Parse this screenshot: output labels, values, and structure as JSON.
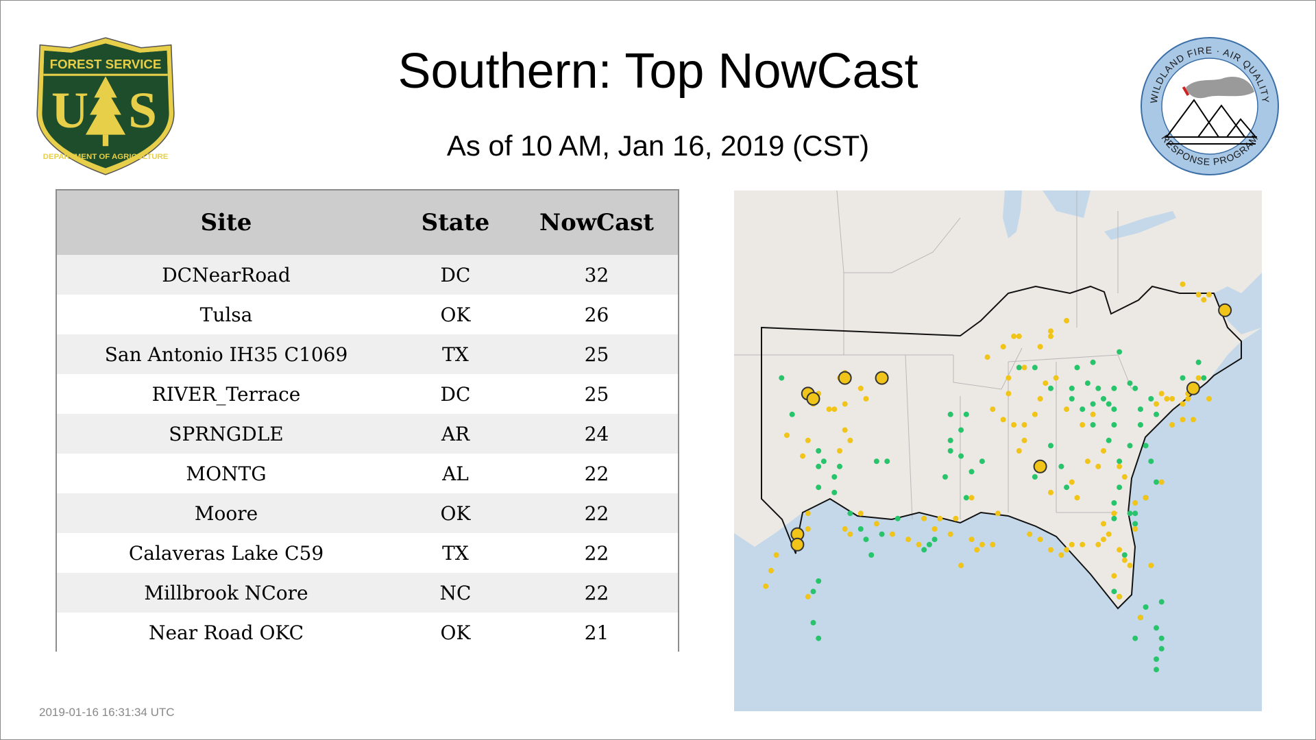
{
  "header": {
    "title": "Southern: Top NowCast",
    "subtitle": "As of 10 AM, Jan 16, 2019 (CST)"
  },
  "logos": {
    "forest_service": {
      "icon": "forest-service-shield-icon",
      "top_text": "FOREST SERVICE",
      "letters": "U S",
      "bottom_text": "DEPARTMENT OF AGRICULTURE",
      "colors": {
        "shield": "#1e4d2b",
        "gold": "#e8cf4a"
      }
    },
    "wildland_fire": {
      "icon": "wildland-fire-air-quality-seal-icon",
      "top_text": "WILDLAND FIRE · AIR QUALITY",
      "bottom_text": "RESPONSE PROGRAM",
      "colors": {
        "ring": "#a9c8e6",
        "border": "#3a6ea5"
      }
    }
  },
  "table": {
    "columns": [
      "Site",
      "State",
      "NowCast"
    ],
    "rows": [
      {
        "site": "DCNearRoad",
        "state": "DC",
        "nowcast": "32"
      },
      {
        "site": "Tulsa",
        "state": "OK",
        "nowcast": "26"
      },
      {
        "site": "San Antonio IH35 C1069",
        "state": "TX",
        "nowcast": "25"
      },
      {
        "site": "RIVER_Terrace",
        "state": "DC",
        "nowcast": "25"
      },
      {
        "site": "SPRNGDLE",
        "state": "AR",
        "nowcast": "24"
      },
      {
        "site": "MONTG",
        "state": "AL",
        "nowcast": "22"
      },
      {
        "site": "Moore",
        "state": "OK",
        "nowcast": "22"
      },
      {
        "site": "Calaveras Lake C59",
        "state": "TX",
        "nowcast": "22"
      },
      {
        "site": "Millbrook NCore",
        "state": "NC",
        "nowcast": "22"
      },
      {
        "site": "Near Road OKC",
        "state": "OK",
        "nowcast": "21"
      }
    ]
  },
  "map": {
    "colors": {
      "land": "#ece9e4",
      "water": "#c4d8ea",
      "good": "#27c46b",
      "moderate": "#f0c419",
      "highlight_stroke": "#333333"
    },
    "sites": {
      "green": [
        [
          0.09,
          0.36
        ],
        [
          0.11,
          0.43
        ],
        [
          0.16,
          0.5
        ],
        [
          0.16,
          0.53
        ],
        [
          0.17,
          0.52
        ],
        [
          0.19,
          0.55
        ],
        [
          0.19,
          0.58
        ],
        [
          0.2,
          0.53
        ],
        [
          0.16,
          0.57
        ],
        [
          0.27,
          0.52
        ],
        [
          0.29,
          0.52
        ],
        [
          0.22,
          0.62
        ],
        [
          0.24,
          0.65
        ],
        [
          0.25,
          0.67
        ],
        [
          0.26,
          0.7
        ],
        [
          0.28,
          0.66
        ],
        [
          0.31,
          0.63
        ],
        [
          0.37,
          0.68
        ],
        [
          0.38,
          0.67
        ],
        [
          0.36,
          0.69
        ],
        [
          0.16,
          0.75
        ],
        [
          0.15,
          0.77
        ],
        [
          0.15,
          0.83
        ],
        [
          0.16,
          0.86
        ],
        [
          0.44,
          0.43
        ],
        [
          0.43,
          0.46
        ],
        [
          0.41,
          0.48
        ],
        [
          0.41,
          0.43
        ],
        [
          0.41,
          0.5
        ],
        [
          0.54,
          0.34
        ],
        [
          0.57,
          0.34
        ],
        [
          0.65,
          0.34
        ],
        [
          0.68,
          0.33
        ],
        [
          0.73,
          0.31
        ],
        [
          0.6,
          0.38
        ],
        [
          0.64,
          0.38
        ],
        [
          0.67,
          0.37
        ],
        [
          0.69,
          0.38
        ],
        [
          0.72,
          0.38
        ],
        [
          0.75,
          0.37
        ],
        [
          0.76,
          0.38
        ],
        [
          0.7,
          0.4
        ],
        [
          0.71,
          0.41
        ],
        [
          0.64,
          0.4
        ],
        [
          0.68,
          0.41
        ],
        [
          0.72,
          0.42
        ],
        [
          0.77,
          0.42
        ],
        [
          0.79,
          0.4
        ],
        [
          0.66,
          0.42
        ],
        [
          0.68,
          0.45
        ],
        [
          0.72,
          0.45
        ],
        [
          0.77,
          0.45
        ],
        [
          0.8,
          0.43
        ],
        [
          0.71,
          0.48
        ],
        [
          0.75,
          0.49
        ],
        [
          0.78,
          0.49
        ],
        [
          0.79,
          0.52
        ],
        [
          0.73,
          0.52
        ],
        [
          0.73,
          0.57
        ],
        [
          0.72,
          0.6
        ],
        [
          0.8,
          0.56
        ],
        [
          0.78,
          0.59
        ],
        [
          0.85,
          0.36
        ],
        [
          0.88,
          0.33
        ],
        [
          0.89,
          0.36
        ],
        [
          0.72,
          0.63
        ],
        [
          0.75,
          0.62
        ],
        [
          0.76,
          0.62
        ],
        [
          0.76,
          0.64
        ],
        [
          0.74,
          0.7
        ],
        [
          0.72,
          0.77
        ],
        [
          0.73,
          0.78
        ],
        [
          0.78,
          0.8
        ],
        [
          0.77,
          0.82
        ],
        [
          0.81,
          0.79
        ],
        [
          0.8,
          0.84
        ],
        [
          0.81,
          0.86
        ],
        [
          0.81,
          0.88
        ],
        [
          0.8,
          0.9
        ],
        [
          0.76,
          0.86
        ],
        [
          0.8,
          0.92
        ],
        [
          0.6,
          0.49
        ],
        [
          0.62,
          0.53
        ],
        [
          0.63,
          0.57
        ],
        [
          0.57,
          0.55
        ],
        [
          0.4,
          0.55
        ],
        [
          0.43,
          0.51
        ],
        [
          0.47,
          0.52
        ],
        [
          0.45,
          0.54
        ],
        [
          0.44,
          0.59
        ]
      ],
      "yellow": [
        [
          0.15,
          0.41
        ],
        [
          0.16,
          0.39
        ],
        [
          0.18,
          0.42
        ],
        [
          0.21,
          0.35
        ],
        [
          0.2,
          0.36
        ],
        [
          0.21,
          0.41
        ],
        [
          0.24,
          0.38
        ],
        [
          0.25,
          0.4
        ],
        [
          0.19,
          0.42
        ],
        [
          0.1,
          0.47
        ],
        [
          0.13,
          0.51
        ],
        [
          0.14,
          0.48
        ],
        [
          0.21,
          0.46
        ],
        [
          0.22,
          0.48
        ],
        [
          0.2,
          0.5
        ],
        [
          0.14,
          0.62
        ],
        [
          0.14,
          0.65
        ],
        [
          0.08,
          0.7
        ],
        [
          0.07,
          0.73
        ],
        [
          0.06,
          0.76
        ],
        [
          0.14,
          0.78
        ],
        [
          0.21,
          0.65
        ],
        [
          0.22,
          0.66
        ],
        [
          0.24,
          0.62
        ],
        [
          0.27,
          0.64
        ],
        [
          0.3,
          0.66
        ],
        [
          0.33,
          0.67
        ],
        [
          0.35,
          0.68
        ],
        [
          0.36,
          0.63
        ],
        [
          0.38,
          0.65
        ],
        [
          0.41,
          0.66
        ],
        [
          0.42,
          0.63
        ],
        [
          0.39,
          0.63
        ],
        [
          0.45,
          0.59
        ],
        [
          0.45,
          0.67
        ],
        [
          0.47,
          0.68
        ],
        [
          0.49,
          0.68
        ],
        [
          0.5,
          0.62
        ],
        [
          0.56,
          0.66
        ],
        [
          0.58,
          0.67
        ],
        [
          0.6,
          0.69
        ],
        [
          0.62,
          0.7
        ],
        [
          0.63,
          0.69
        ],
        [
          0.64,
          0.68
        ],
        [
          0.66,
          0.68
        ],
        [
          0.69,
          0.68
        ],
        [
          0.7,
          0.67
        ],
        [
          0.55,
          0.48
        ],
        [
          0.54,
          0.5
        ],
        [
          0.51,
          0.44
        ],
        [
          0.53,
          0.45
        ],
        [
          0.55,
          0.45
        ],
        [
          0.57,
          0.43
        ],
        [
          0.58,
          0.4
        ],
        [
          0.59,
          0.37
        ],
        [
          0.61,
          0.36
        ],
        [
          0.58,
          0.3
        ],
        [
          0.53,
          0.28
        ],
        [
          0.54,
          0.28
        ],
        [
          0.51,
          0.3
        ],
        [
          0.48,
          0.32
        ],
        [
          0.6,
          0.27
        ],
        [
          0.6,
          0.28
        ],
        [
          0.63,
          0.25
        ],
        [
          0.63,
          0.42
        ],
        [
          0.66,
          0.45
        ],
        [
          0.68,
          0.43
        ],
        [
          0.7,
          0.5
        ],
        [
          0.73,
          0.53
        ],
        [
          0.69,
          0.53
        ],
        [
          0.67,
          0.52
        ],
        [
          0.64,
          0.56
        ],
        [
          0.65,
          0.59
        ],
        [
          0.6,
          0.58
        ],
        [
          0.74,
          0.55
        ],
        [
          0.8,
          0.41
        ],
        [
          0.81,
          0.39
        ],
        [
          0.82,
          0.4
        ],
        [
          0.83,
          0.4
        ],
        [
          0.85,
          0.41
        ],
        [
          0.86,
          0.39
        ],
        [
          0.88,
          0.36
        ],
        [
          0.86,
          0.4
        ],
        [
          0.85,
          0.44
        ],
        [
          0.83,
          0.45
        ],
        [
          0.87,
          0.44
        ],
        [
          0.9,
          0.4
        ],
        [
          0.88,
          0.2
        ],
        [
          0.89,
          0.21
        ],
        [
          0.9,
          0.2
        ],
        [
          0.85,
          0.18
        ],
        [
          0.81,
          0.56
        ],
        [
          0.78,
          0.59
        ],
        [
          0.76,
          0.65
        ],
        [
          0.75,
          0.72
        ],
        [
          0.72,
          0.74
        ],
        [
          0.73,
          0.78
        ],
        [
          0.77,
          0.82
        ],
        [
          0.72,
          0.62
        ],
        [
          0.7,
          0.64
        ],
        [
          0.71,
          0.66
        ],
        [
          0.76,
          0.6
        ],
        [
          0.79,
          0.72
        ],
        [
          0.73,
          0.69
        ],
        [
          0.74,
          0.71
        ],
        [
          0.46,
          0.69
        ],
        [
          0.43,
          0.72
        ],
        [
          0.55,
          0.34
        ],
        [
          0.52,
          0.36
        ],
        [
          0.52,
          0.39
        ],
        [
          0.49,
          0.42
        ]
      ],
      "large": [
        [
          0.93,
          0.23
        ],
        [
          0.87,
          0.38
        ],
        [
          0.14,
          0.39
        ],
        [
          0.15,
          0.4
        ],
        [
          0.21,
          0.36
        ],
        [
          0.28,
          0.36
        ],
        [
          0.58,
          0.53
        ],
        [
          0.12,
          0.66
        ],
        [
          0.12,
          0.68
        ]
      ]
    }
  },
  "footer": {
    "timestamp": "2019-01-16 16:31:34 UTC"
  }
}
